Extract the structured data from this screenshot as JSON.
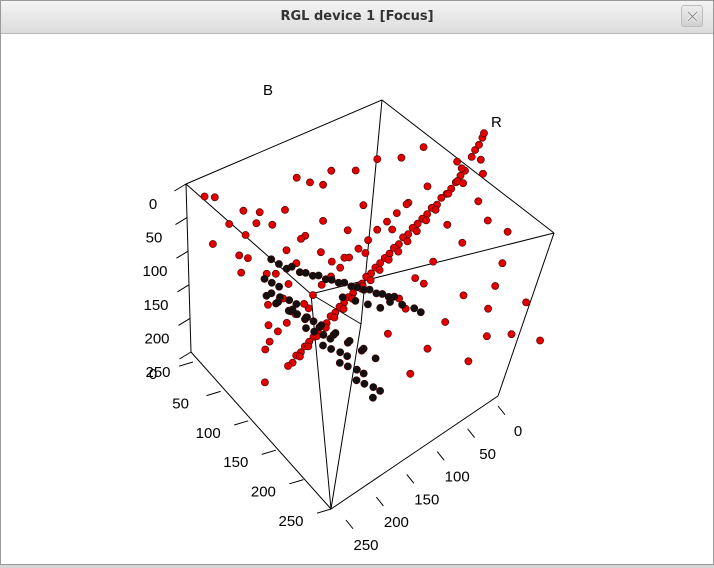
{
  "window": {
    "title": "RGL device 1 [Focus]",
    "close_icon": "close-x-icon"
  },
  "chart_data": {
    "type": "scatter",
    "subtype": "3d-scatter",
    "axis_labels": {
      "x": "R",
      "y": "B"
    },
    "axis_ticks": {
      "left": [
        "0",
        "50",
        "100",
        "150",
        "200",
        "250"
      ],
      "front_left": [
        "0",
        "50",
        "100",
        "150",
        "200",
        "250"
      ],
      "front_right": [
        "0",
        "50",
        "100",
        "150",
        "200",
        "250"
      ]
    },
    "ranges": {
      "R": [
        0,
        255
      ],
      "G": [
        0,
        255
      ],
      "B": [
        0,
        255
      ]
    },
    "colors": {
      "series_red": "#e00000",
      "series_black": "#111111",
      "box": "#000000"
    },
    "series": [
      {
        "color": "red",
        "points": [
          [
            230,
            40,
            40
          ],
          [
            225,
            45,
            38
          ],
          [
            220,
            50,
            45
          ],
          [
            215,
            55,
            50
          ],
          [
            210,
            60,
            48
          ],
          [
            205,
            62,
            55
          ],
          [
            200,
            68,
            58
          ],
          [
            195,
            70,
            60
          ],
          [
            190,
            75,
            65
          ],
          [
            185,
            78,
            70
          ],
          [
            180,
            82,
            72
          ],
          [
            175,
            85,
            75
          ],
          [
            170,
            90,
            80
          ],
          [
            165,
            92,
            82
          ],
          [
            160,
            98,
            85
          ],
          [
            155,
            100,
            90
          ],
          [
            150,
            105,
            92
          ],
          [
            145,
            108,
            95
          ],
          [
            140,
            112,
            98
          ],
          [
            135,
            115,
            102
          ],
          [
            130,
            120,
            105
          ],
          [
            125,
            122,
            108
          ],
          [
            120,
            128,
            110
          ],
          [
            115,
            130,
            115
          ],
          [
            110,
            135,
            118
          ],
          [
            105,
            138,
            120
          ],
          [
            100,
            142,
            125
          ],
          [
            95,
            145,
            128
          ],
          [
            90,
            150,
            130
          ],
          [
            85,
            152,
            135
          ],
          [
            80,
            158,
            138
          ],
          [
            75,
            160,
            140
          ],
          [
            70,
            165,
            145
          ],
          [
            65,
            168,
            148
          ],
          [
            60,
            172,
            150
          ],
          [
            55,
            175,
            155
          ],
          [
            50,
            180,
            158
          ],
          [
            45,
            182,
            160
          ],
          [
            40,
            188,
            165
          ],
          [
            35,
            190,
            168
          ],
          [
            238,
            28,
            30
          ],
          [
            242,
            22,
            25
          ],
          [
            246,
            18,
            20
          ],
          [
            250,
            12,
            14
          ],
          [
            252,
            8,
            10
          ],
          [
            228,
            36,
            44
          ],
          [
            222,
            48,
            50
          ],
          [
            212,
            58,
            60
          ],
          [
            198,
            72,
            66
          ],
          [
            188,
            80,
            74
          ],
          [
            178,
            88,
            84
          ],
          [
            168,
            96,
            90
          ],
          [
            158,
            104,
            96
          ],
          [
            148,
            110,
            100
          ],
          [
            138,
            118,
            106
          ],
          [
            128,
            126,
            112
          ],
          [
            118,
            132,
            118
          ],
          [
            108,
            140,
            124
          ],
          [
            98,
            148,
            130
          ],
          [
            88,
            154,
            136
          ],
          [
            78,
            162,
            142
          ],
          [
            68,
            168,
            148
          ],
          [
            58,
            176,
            154
          ],
          [
            48,
            184,
            160
          ],
          [
            20,
            30,
            120
          ],
          [
            30,
            40,
            150
          ],
          [
            25,
            60,
            180
          ],
          [
            40,
            20,
            200
          ],
          [
            15,
            45,
            230
          ],
          [
            35,
            70,
            240
          ],
          [
            50,
            30,
            90
          ],
          [
            60,
            55,
            210
          ],
          [
            70,
            20,
            160
          ],
          [
            45,
            80,
            200
          ],
          [
            80,
            40,
            230
          ],
          [
            20,
            90,
            100
          ],
          [
            90,
            60,
            240
          ],
          [
            55,
            100,
            170
          ],
          [
            100,
            30,
            220
          ],
          [
            30,
            110,
            210
          ],
          [
            110,
            70,
            250
          ],
          [
            65,
            120,
            230
          ],
          [
            120,
            50,
            200
          ],
          [
            140,
            30,
            180
          ],
          [
            160,
            60,
            200
          ],
          [
            180,
            40,
            170
          ],
          [
            200,
            30,
            150
          ],
          [
            210,
            70,
            190
          ],
          [
            230,
            40,
            120
          ],
          [
            240,
            60,
            140
          ],
          [
            250,
            20,
            110
          ],
          [
            245,
            80,
            160
          ],
          [
            220,
            90,
            210
          ],
          [
            190,
            100,
            230
          ],
          [
            170,
            110,
            250
          ],
          [
            150,
            130,
            240
          ],
          [
            130,
            90,
            140
          ],
          [
            110,
            20,
            60
          ],
          [
            90,
            10,
            40
          ],
          [
            70,
            100,
            60
          ],
          [
            50,
            130,
            90
          ],
          [
            30,
            150,
            120
          ],
          [
            20,
            170,
            150
          ],
          [
            10,
            200,
            180
          ],
          [
            240,
            150,
            40
          ],
          [
            230,
            170,
            60
          ],
          [
            220,
            190,
            80
          ],
          [
            250,
            200,
            30
          ],
          [
            235,
            220,
            100
          ],
          [
            200,
            180,
            20
          ],
          [
            180,
            200,
            50
          ],
          [
            160,
            220,
            80
          ],
          [
            140,
            240,
            100
          ],
          [
            255,
            240,
            60
          ],
          [
            210,
            230,
            20
          ],
          [
            190,
            250,
            40
          ],
          [
            170,
            160,
            10
          ],
          [
            150,
            180,
            30
          ],
          [
            130,
            200,
            50
          ],
          [
            250,
            120,
            20
          ],
          [
            60,
            60,
            20
          ],
          [
            80,
            80,
            30
          ],
          [
            40,
            40,
            10
          ],
          [
            100,
            110,
            40
          ],
          [
            120,
            140,
            60
          ],
          [
            20,
            20,
            5
          ],
          [
            10,
            10,
            40
          ],
          [
            5,
            60,
            60
          ],
          [
            200,
            10,
            10
          ],
          [
            180,
            15,
            20
          ],
          [
            160,
            12,
            15
          ],
          [
            140,
            18,
            25
          ],
          [
            120,
            14,
            18
          ],
          [
            100,
            20,
            30
          ],
          [
            225,
            30,
            30
          ],
          [
            245,
            45,
            55
          ],
          [
            175,
            60,
            62
          ],
          [
            165,
            66,
            70
          ],
          [
            155,
            72,
            76
          ],
          [
            145,
            78,
            80
          ],
          [
            135,
            86,
            88
          ],
          [
            125,
            92,
            94
          ],
          [
            115,
            98,
            102
          ],
          [
            105,
            106,
            108
          ],
          [
            95,
            112,
            116
          ],
          [
            85,
            118,
            122
          ],
          [
            75,
            126,
            128
          ],
          [
            65,
            132,
            136
          ],
          [
            55,
            140,
            142
          ],
          [
            45,
            146,
            150
          ],
          [
            35,
            152,
            156
          ],
          [
            25,
            160,
            162
          ]
        ]
      },
      {
        "color": "black",
        "points": [
          [
            40,
            110,
            60
          ],
          [
            45,
            115,
            65
          ],
          [
            50,
            120,
            70
          ],
          [
            42,
            125,
            72
          ],
          [
            48,
            130,
            78
          ],
          [
            55,
            135,
            80
          ],
          [
            60,
            140,
            85
          ],
          [
            52,
            145,
            88
          ],
          [
            58,
            150,
            92
          ],
          [
            65,
            155,
            95
          ],
          [
            70,
            160,
            100
          ],
          [
            62,
            165,
            104
          ],
          [
            68,
            170,
            108
          ],
          [
            75,
            175,
            112
          ],
          [
            80,
            180,
            116
          ],
          [
            72,
            185,
            120
          ],
          [
            78,
            190,
            124
          ],
          [
            85,
            195,
            128
          ],
          [
            90,
            200,
            132
          ],
          [
            82,
            205,
            136
          ],
          [
            88,
            210,
            140
          ],
          [
            95,
            215,
            144
          ],
          [
            100,
            220,
            148
          ],
          [
            92,
            225,
            152
          ],
          [
            98,
            230,
            156
          ],
          [
            105,
            235,
            160
          ],
          [
            110,
            240,
            164
          ],
          [
            102,
            245,
            168
          ],
          [
            60,
            100,
            80
          ],
          [
            70,
            105,
            90
          ],
          [
            80,
            110,
            100
          ],
          [
            90,
            115,
            110
          ],
          [
            100,
            120,
            120
          ],
          [
            110,
            125,
            130
          ],
          [
            120,
            130,
            140
          ],
          [
            130,
            135,
            150
          ],
          [
            140,
            140,
            160
          ],
          [
            50,
            90,
            60
          ],
          [
            55,
            95,
            70
          ],
          [
            65,
            100,
            75
          ],
          [
            75,
            108,
            85
          ],
          [
            85,
            112,
            95
          ],
          [
            95,
            118,
            105
          ],
          [
            105,
            122,
            115
          ],
          [
            115,
            128,
            125
          ],
          [
            125,
            132,
            135
          ],
          [
            135,
            138,
            145
          ],
          [
            145,
            142,
            155
          ],
          [
            44,
            140,
            58
          ],
          [
            54,
            150,
            68
          ],
          [
            64,
            160,
            78
          ],
          [
            74,
            170,
            88
          ],
          [
            84,
            180,
            98
          ],
          [
            94,
            190,
            108
          ],
          [
            104,
            200,
            118
          ],
          [
            114,
            210,
            128
          ],
          [
            38,
            130,
            55
          ],
          [
            46,
            138,
            62
          ],
          [
            56,
            148,
            70
          ],
          [
            66,
            158,
            80
          ],
          [
            76,
            168,
            90
          ],
          [
            86,
            178,
            100
          ],
          [
            96,
            188,
            110
          ],
          [
            106,
            198,
            120
          ],
          [
            150,
            150,
            170
          ],
          [
            160,
            155,
            180
          ],
          [
            165,
            160,
            185
          ],
          [
            140,
            145,
            165
          ],
          [
            130,
            150,
            160
          ],
          [
            120,
            145,
            150
          ],
          [
            110,
            140,
            140
          ],
          [
            100,
            135,
            130
          ]
        ]
      }
    ]
  }
}
